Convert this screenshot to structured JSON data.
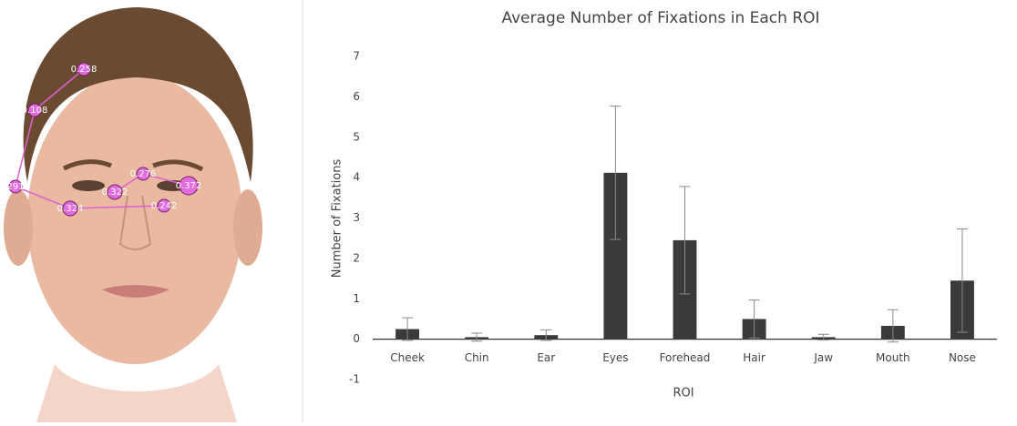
{
  "chart_data": {
    "type": "bar",
    "title": "Average Number of Fixations in Each ROI",
    "x_label": "ROI",
    "y_label": "Number of Fixations",
    "categories": [
      "Cheek",
      "Chin",
      "Ear",
      "Eyes",
      "Forehead",
      "Hair",
      "Jaw",
      "Mouth",
      "Nose"
    ],
    "values": [
      0.25,
      0.05,
      0.1,
      4.12,
      2.45,
      0.5,
      0.05,
      0.33,
      1.45
    ],
    "errors": [
      0.28,
      0.1,
      0.13,
      1.65,
      1.33,
      0.47,
      0.07,
      0.4,
      1.28
    ],
    "color": "#3a3a3a",
    "error_color": "#8a8a8a",
    "ylim": [
      -1,
      7
    ],
    "yticks": [
      -1,
      0,
      1,
      2,
      3,
      4,
      5,
      6,
      7
    ]
  },
  "face_fixations": {
    "labels": [
      "0.258",
      "0.108",
      "291",
      "0.324",
      "0.242",
      "0.372",
      "0.276",
      "0.322"
    ]
  }
}
